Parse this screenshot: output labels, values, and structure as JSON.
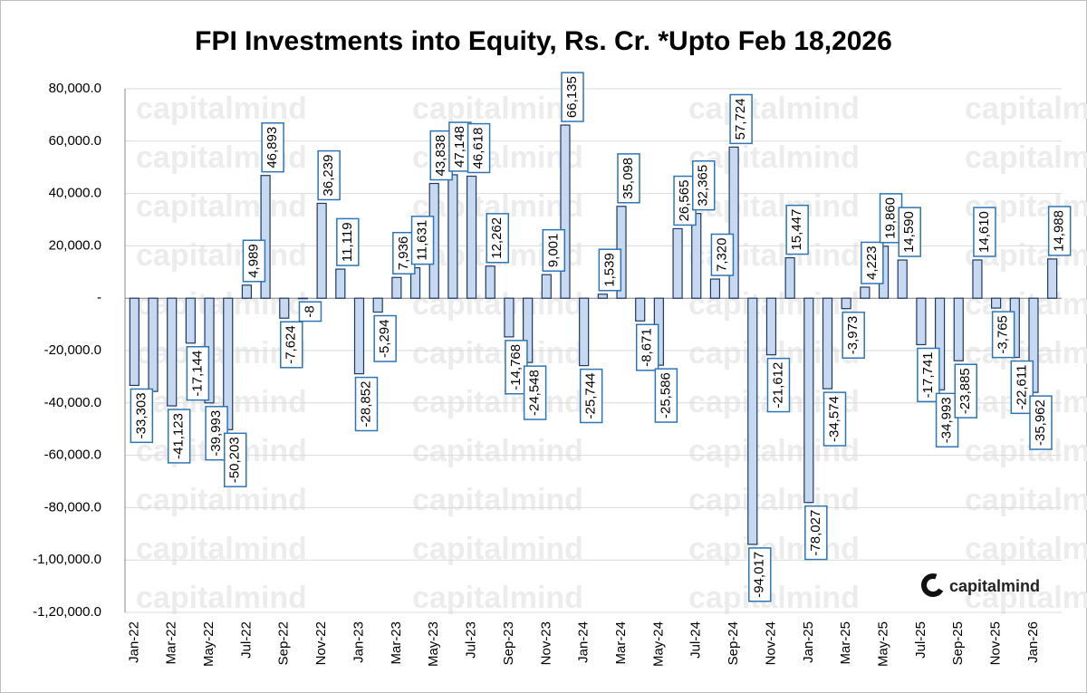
{
  "chart_data": {
    "type": "bar",
    "title": "FPI Investments into Equity, Rs. Cr. *Upto Feb 18,2026",
    "watermark": "capitalmind",
    "categories": [
      "Jan-22",
      null,
      "Mar-22",
      null,
      "May-22",
      null,
      "Jul-22",
      null,
      "Sep-22",
      null,
      "Nov-22",
      null,
      "Jan-23",
      null,
      "Mar-23",
      null,
      "May-23",
      null,
      "Jul-23",
      null,
      "Sep-23",
      null,
      "Nov-23",
      null,
      "Jan-24",
      null,
      "Mar-24",
      null,
      "May-24",
      null,
      "Jul-24",
      null,
      "Sep-24",
      null,
      "Nov-24",
      null,
      "Jan-25",
      null,
      "Mar-25",
      null,
      "May-25",
      null,
      "Jul-25",
      null,
      "Sep-25",
      null,
      "Nov-25",
      null,
      "Jan-26",
      null
    ],
    "values": [
      -33303,
      -35592,
      -41123,
      -17144,
      -39993,
      -50203,
      4989,
      46893,
      -7624,
      -8,
      36239,
      11119,
      -28852,
      -5294,
      7936,
      11631,
      43838,
      47148,
      46618,
      12262,
      -14768,
      -24548,
      9001,
      66135,
      -25744,
      1539,
      35098,
      -8671,
      -25586,
      26565,
      32365,
      7320,
      57724,
      -94017,
      -21612,
      15447,
      -78027,
      -34574,
      -3973,
      4223,
      19860,
      14590,
      -17741,
      -34993,
      -23885,
      14610,
      -3765,
      -22611,
      -35962,
      14988
    ],
    "value_labels": [
      "-33,303",
      null,
      "-41,123",
      "-17,144",
      "-39,993",
      "-50,203",
      "4,989",
      "46,893",
      "-7,624",
      "-8",
      "36,239",
      "11,119",
      "-28,852",
      "-5,294",
      "7,936",
      "11,631",
      "43,838",
      "47,148",
      "46,618",
      "12,262",
      "-14,768",
      "-24,548",
      "9,001",
      "66,135",
      "-25,744",
      "1,539",
      "35,098",
      "-8,671",
      "-25,586",
      "26,565",
      "32,365",
      "7,320",
      "57,724",
      "-94,017",
      "-21,612",
      "15,447",
      "-78,027",
      "-34,574",
      "-3,973",
      "4,223",
      "19,860",
      "14,590",
      "-17,741",
      "-34,993",
      "-23,885",
      "14,610",
      "-3,765",
      "-22,611",
      "-35,962",
      "14,988"
    ],
    "color": "#c6d9f1",
    "ylim": [
      -120000,
      80000
    ],
    "yticks": [
      {
        "value": -120000,
        "label": "-1,20,000.0"
      },
      {
        "value": -100000,
        "label": "-1,00,000.0"
      },
      {
        "value": -80000,
        "label": "-80,000.0"
      },
      {
        "value": -60000,
        "label": "-60,000.0"
      },
      {
        "value": -40000,
        "label": "-40,000.0"
      },
      {
        "value": -20000,
        "label": "-20,000.0"
      },
      {
        "value": 0,
        "label": "-"
      },
      {
        "value": 20000,
        "label": "20,000.0"
      },
      {
        "value": 40000,
        "label": "40,000.0"
      },
      {
        "value": 60000,
        "label": "60,000.0"
      },
      {
        "value": 80000,
        "label": "80,000.0"
      }
    ],
    "grid": true
  }
}
